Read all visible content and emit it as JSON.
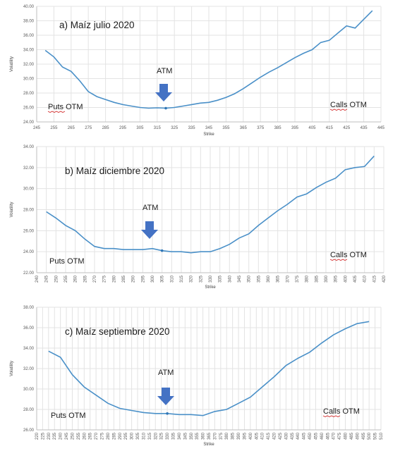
{
  "chart_data": [
    {
      "type": "line",
      "title": "a) Maíz julio 2020",
      "xlabel": "Strike",
      "ylabel": "Volatility",
      "xlim": [
        245,
        445
      ],
      "ylim": [
        24,
        40
      ],
      "yticks": [
        "24.00",
        "26.00",
        "28.00",
        "30.00",
        "32.00",
        "34.00",
        "36.00",
        "38.00",
        "40.00"
      ],
      "xticks": [
        "245",
        "255",
        "265",
        "275",
        "285",
        "295",
        "305",
        "315",
        "325",
        "335",
        "345",
        "355",
        "365",
        "375",
        "385",
        "395",
        "405",
        "415",
        "425",
        "435",
        "445"
      ],
      "atm_label": "ATM",
      "atm_strike": 320,
      "atm_vol": 25.9,
      "puts_label": "Puts OTM",
      "calls_label": "Calls OTM",
      "series": [
        {
          "x": [
            250,
            255,
            260,
            265,
            270,
            275,
            280,
            285,
            290,
            295,
            300,
            305,
            310,
            315,
            320,
            325,
            330,
            335,
            340,
            345,
            350,
            355,
            360,
            365,
            370,
            375,
            380,
            385,
            390,
            395,
            400,
            405,
            410,
            415,
            420,
            425,
            430,
            435,
            440
          ],
          "values": [
            33.9,
            33.0,
            31.6,
            31.0,
            29.7,
            28.2,
            27.5,
            27.1,
            26.7,
            26.4,
            26.2,
            26.0,
            25.9,
            25.95,
            25.9,
            26.0,
            26.2,
            26.4,
            26.6,
            26.7,
            27.0,
            27.4,
            27.9,
            28.6,
            29.4,
            30.2,
            30.9,
            31.5,
            32.2,
            32.9,
            33.5,
            34.0,
            35.0,
            35.3,
            36.3,
            37.3,
            37.0,
            38.2,
            39.4
          ]
        }
      ]
    },
    {
      "type": "line",
      "title": "b) Maíz diciembre 2020",
      "xlabel": "Strike",
      "ylabel": "Volatility",
      "xlim": [
        240,
        420
      ],
      "ylim": [
        22,
        34
      ],
      "yticks": [
        "22.00",
        "24.00",
        "26.00",
        "28.00",
        "30.00",
        "32.00",
        "34.00"
      ],
      "xticks": [
        "240",
        "245",
        "250",
        "255",
        "260",
        "265",
        "270",
        "275",
        "280",
        "285",
        "290",
        "295",
        "300",
        "305",
        "310",
        "315",
        "320",
        "325",
        "330",
        "335",
        "340",
        "345",
        "350",
        "355",
        "360",
        "365",
        "370",
        "375",
        "380",
        "385",
        "390",
        "395",
        "400",
        "405",
        "410",
        "415",
        "420"
      ],
      "atm_label": "ATM",
      "atm_strike": 305,
      "atm_vol": 24.1,
      "puts_label": "Puts OTM",
      "calls_label": "Calls OTM",
      "series": [
        {
          "x": [
            245,
            250,
            255,
            260,
            265,
            270,
            275,
            280,
            285,
            290,
            295,
            300,
            305,
            310,
            315,
            320,
            325,
            330,
            335,
            340,
            345,
            350,
            355,
            360,
            365,
            370,
            375,
            380,
            385,
            390,
            395,
            400,
            405,
            410,
            415
          ],
          "values": [
            27.8,
            27.2,
            26.5,
            26.0,
            25.2,
            24.5,
            24.3,
            24.3,
            24.2,
            24.2,
            24.2,
            24.3,
            24.1,
            24.0,
            24.0,
            23.9,
            24.0,
            24.0,
            24.3,
            24.7,
            25.3,
            25.7,
            26.5,
            27.2,
            27.9,
            28.5,
            29.2,
            29.5,
            30.1,
            30.6,
            31.0,
            31.8,
            32.0,
            32.1,
            33.1
          ]
        }
      ]
    },
    {
      "type": "line",
      "title": "c) Maíz septiembre 2020",
      "xlabel": "Strike",
      "ylabel": "Volatility",
      "xlim": [
        220,
        510
      ],
      "ylim": [
        26,
        38
      ],
      "yticks": [
        "26.00",
        "28.00",
        "30.00",
        "32.00",
        "34.00",
        "36.00",
        "38.00"
      ],
      "xticks": [
        "220",
        "225",
        "230",
        "235",
        "240",
        "245",
        "250",
        "255",
        "260",
        "265",
        "270",
        "275",
        "280",
        "285",
        "290",
        "295",
        "300",
        "305",
        "310",
        "315",
        "320",
        "325",
        "330",
        "335",
        "340",
        "345",
        "350",
        "355",
        "360",
        "365",
        "370",
        "375",
        "380",
        "385",
        "390",
        "395",
        "400",
        "405",
        "410",
        "415",
        "420",
        "425",
        "430",
        "435",
        "440",
        "445",
        "450",
        "455",
        "460",
        "465",
        "470",
        "475",
        "480",
        "485",
        "490",
        "495",
        "500",
        "505",
        "510"
      ],
      "atm_label": "ATM",
      "atm_strike": 330,
      "atm_vol": 27.6,
      "puts_label": "Puts OTM",
      "calls_label": "Calls OTM",
      "series": [
        {
          "x": [
            230,
            240,
            250,
            260,
            270,
            280,
            290,
            300,
            310,
            320,
            330,
            340,
            350,
            360,
            370,
            380,
            390,
            400,
            410,
            420,
            430,
            440,
            450,
            460,
            470,
            480,
            490,
            500
          ],
          "values": [
            33.7,
            33.1,
            31.4,
            30.2,
            29.4,
            28.6,
            28.1,
            27.9,
            27.7,
            27.6,
            27.6,
            27.5,
            27.5,
            27.4,
            27.8,
            28.0,
            28.6,
            29.2,
            30.2,
            31.2,
            32.3,
            33.0,
            33.6,
            34.5,
            35.3,
            35.9,
            36.4,
            36.6
          ]
        }
      ]
    }
  ]
}
